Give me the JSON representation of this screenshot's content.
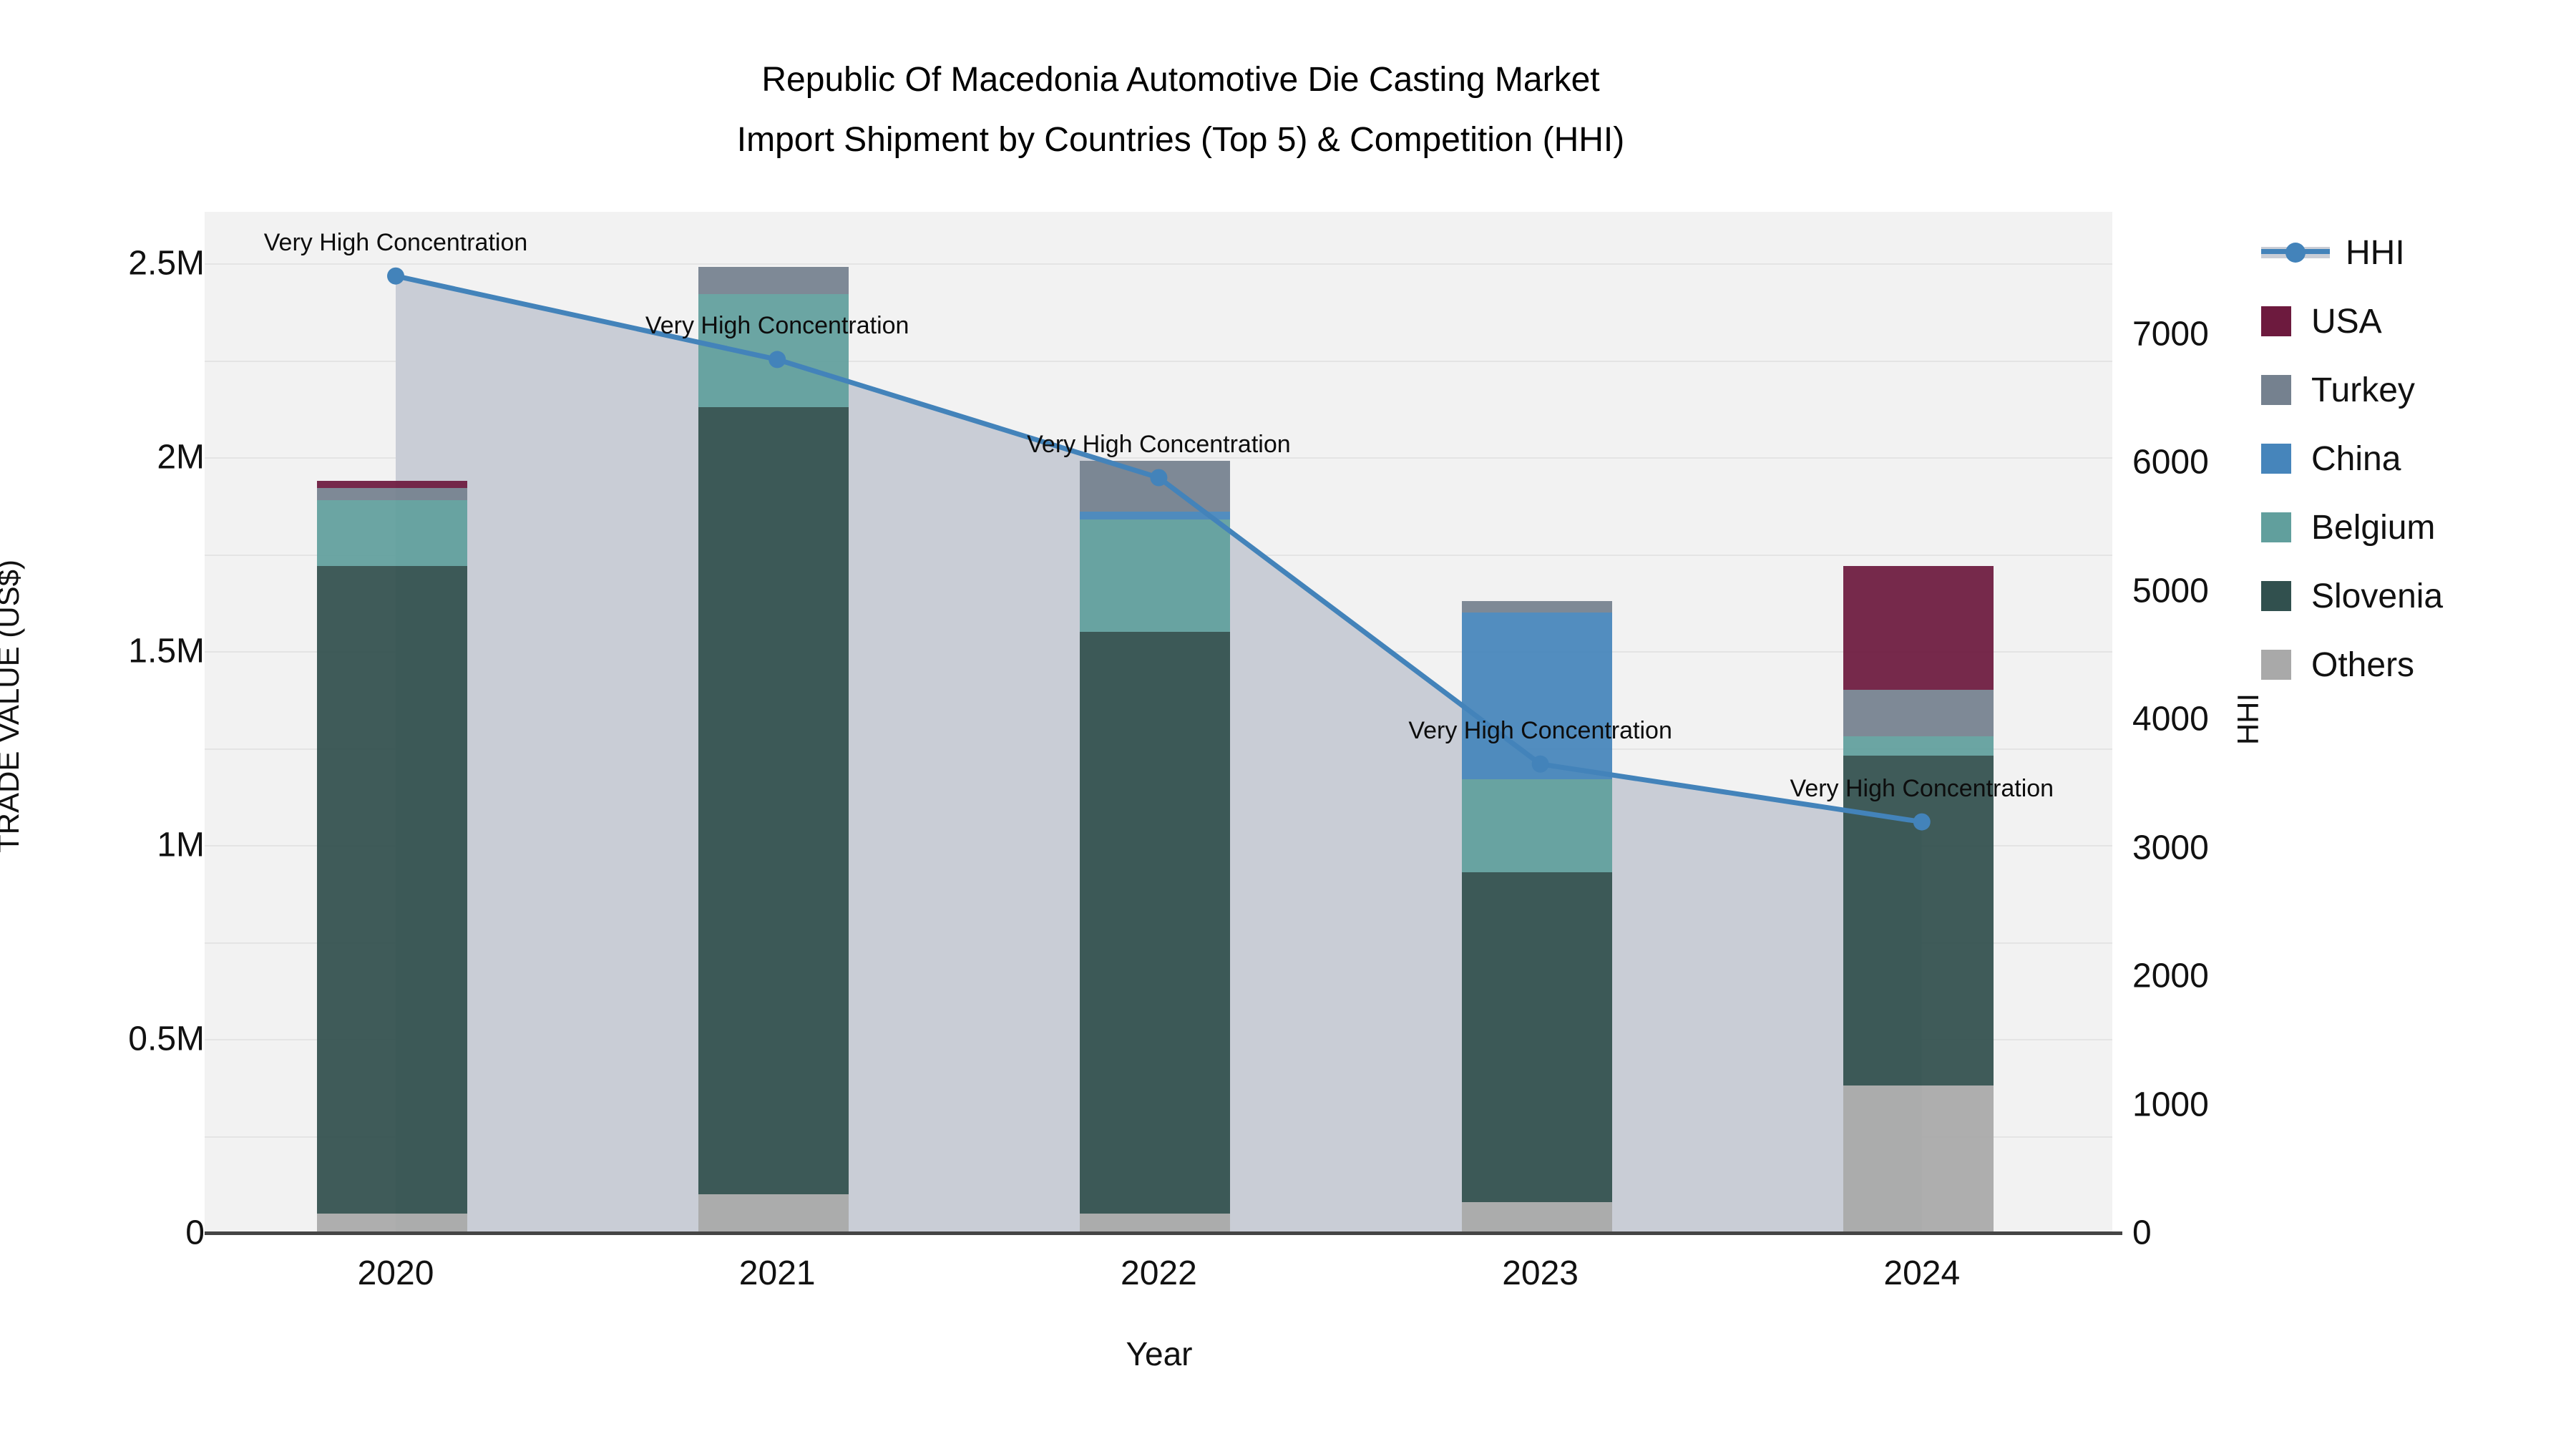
{
  "title_line1": "Republic Of Macedonia Automotive Die Casting Market",
  "title_line2": "Import Shipment by Countries (Top 5) & Competition (HHI)",
  "y_axis_left_title": "TRADE VALUE (US$)",
  "y_axis_right_title": "HHI",
  "x_axis_title": "Year",
  "chart_data": {
    "type": "bar",
    "subtype": "stacked-bars-with-area-line-combo",
    "categories": [
      "2020",
      "2021",
      "2022",
      "2023",
      "2024"
    ],
    "bar_series": [
      {
        "name": "Others",
        "color": "#a9a9a9",
        "values": [
          0.05,
          0.1,
          0.05,
          0.08,
          0.38
        ]
      },
      {
        "name": "Slovenia",
        "color": "#31504e",
        "values": [
          1.67,
          2.03,
          1.5,
          0.85,
          0.85
        ]
      },
      {
        "name": "Belgium",
        "color": "#619f9d",
        "values": [
          0.17,
          0.29,
          0.29,
          0.24,
          0.05
        ]
      },
      {
        "name": "China",
        "color": "#4685bb",
        "values": [
          0.0,
          0.0,
          0.02,
          0.43,
          0.0
        ]
      },
      {
        "name": "Turkey",
        "color": "#75818f",
        "values": [
          0.03,
          0.07,
          0.13,
          0.03,
          0.12
        ]
      },
      {
        "name": "USA",
        "color": "#6d1a3e",
        "values": [
          0.02,
          0.0,
          0.0,
          0.0,
          0.32
        ]
      }
    ],
    "bar_totals_musd": [
      1.94,
      2.49,
      1.99,
      1.63,
      1.72
    ],
    "line_series": {
      "name": "HHI",
      "color": "#4383ba",
      "area_fill": "#c9cdd6",
      "values": [
        7450,
        6800,
        5880,
        3650,
        3200
      ]
    },
    "annotations": [
      {
        "text": "Very High Concentration",
        "x_index": 0
      },
      {
        "text": "Very High Concentration",
        "x_index": 1
      },
      {
        "text": "Very High Concentration",
        "x_index": 2
      },
      {
        "text": "Very High Concentration",
        "x_index": 3
      },
      {
        "text": "Very High Concentration",
        "x_index": 4
      }
    ],
    "y_left": {
      "label": "TRADE VALUE (US$)",
      "ticks": [
        "0",
        "0.5M",
        "1M",
        "1.5M",
        "2M",
        "2.5M"
      ],
      "tick_values": [
        0,
        0.5,
        1.0,
        1.5,
        2.0,
        2.5
      ],
      "unit": "M US$",
      "range": [
        0,
        2.63
      ]
    },
    "y_right": {
      "label": "HHI",
      "ticks": [
        "0",
        "1000",
        "2000",
        "3000",
        "4000",
        "5000",
        "6000",
        "7000"
      ],
      "tick_values": [
        0,
        1000,
        2000,
        3000,
        4000,
        5000,
        6000,
        7000
      ],
      "range": [
        0,
        7950
      ]
    },
    "legend_order": [
      "HHI",
      "USA",
      "Turkey",
      "China",
      "Belgium",
      "Slovenia",
      "Others"
    ],
    "legend_position": "right",
    "grid": true
  },
  "colors": {
    "plot_bg": "#f2f2f2",
    "gridline": "#e4e4e4",
    "axis_line": "#454545",
    "hhi_line": "#4383ba",
    "hhi_area": "#c9cdd6",
    "usa": "#6d1a3e",
    "turkey": "#75818f",
    "china": "#4685bb",
    "belgium": "#619f9d",
    "slovenia": "#31504e",
    "others": "#a9a9a9"
  }
}
